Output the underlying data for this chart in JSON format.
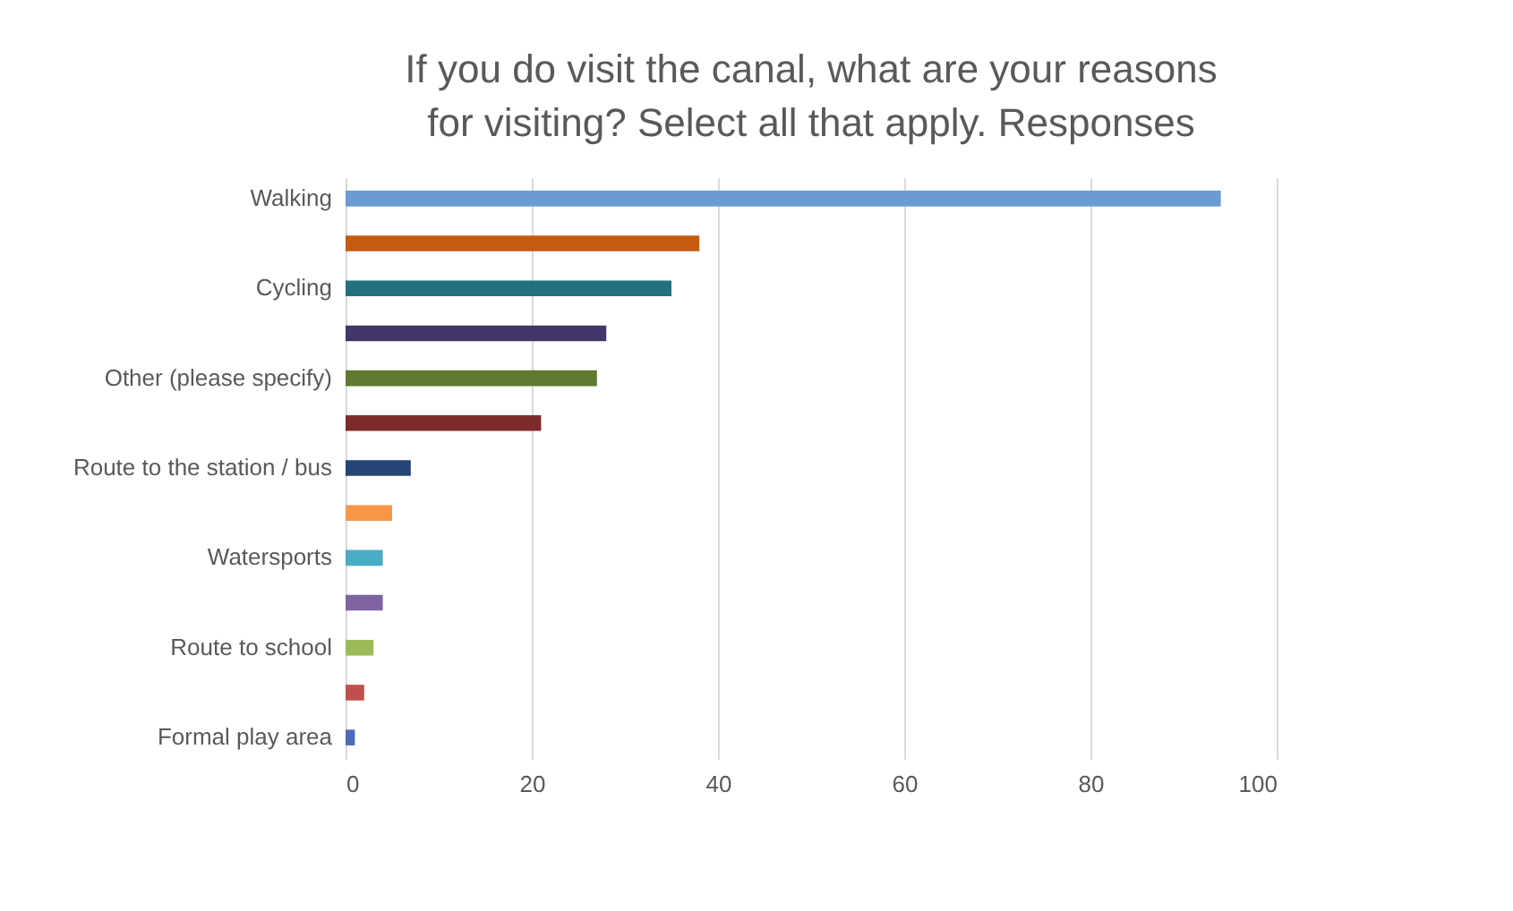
{
  "chart_data": {
    "type": "bar",
    "orientation": "horizontal",
    "title": "If you do visit the canal, what are your reasons\nfor visiting? Select all that apply. Responses",
    "categories": [
      "Walking",
      null,
      "Cycling",
      null,
      "Other (please specify)",
      null,
      "Route to the station / bus",
      null,
      "Watersports",
      null,
      "Route to school",
      null,
      "Formal play area"
    ],
    "values": [
      94,
      38,
      35,
      28,
      27,
      21,
      7,
      5,
      4,
      4,
      3,
      2,
      1
    ],
    "colors": [
      "#6c9bd2",
      "#c55a11",
      "#23707f",
      "#433668",
      "#5f7a30",
      "#7d2a2b",
      "#254577",
      "#f79646",
      "#4bacc6",
      "#8064a2",
      "#9bbb59",
      "#c0504d",
      "#4f6ab8"
    ],
    "xlim": [
      0,
      100
    ],
    "xticks": [
      0,
      20,
      40,
      60,
      80,
      100
    ],
    "grid": "x"
  }
}
